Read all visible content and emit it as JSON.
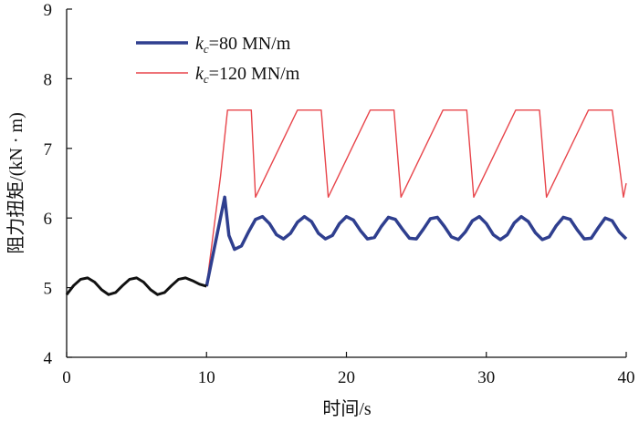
{
  "chart_data": {
    "type": "line",
    "title": "",
    "xlabel": "时间/s",
    "ylabel": "阻力扭矩/(kN · m)",
    "xlim": [
      0,
      40
    ],
    "ylim": [
      4,
      9
    ],
    "xticks": [
      0,
      10,
      20,
      30,
      40
    ],
    "yticks": [
      4,
      5,
      6,
      7,
      8,
      9
    ],
    "grid": false,
    "legend_position": "top-left",
    "series": [
      {
        "name": "common",
        "label": "",
        "color": "#111111",
        "x": [
          0,
          0.5,
          1.0,
          1.5,
          2.0,
          2.5,
          3.0,
          3.5,
          4.0,
          4.5,
          5.0,
          5.5,
          6.0,
          6.5,
          7.0,
          7.5,
          8.0,
          8.5,
          9.0,
          9.5,
          10.0
        ],
        "y": [
          4.9,
          5.03,
          5.12,
          5.14,
          5.08,
          4.97,
          4.9,
          4.93,
          5.03,
          5.12,
          5.14,
          5.08,
          4.97,
          4.9,
          4.93,
          5.03,
          5.12,
          5.14,
          5.1,
          5.05,
          5.02
        ]
      },
      {
        "name": "kc80",
        "label_prefix": "k",
        "label_sub": "c",
        "label_suffix": "=80 MN/m",
        "color": "#2f3f8f",
        "x": [
          10.0,
          11.3,
          11.6,
          12.0,
          12.5,
          13.0,
          13.5,
          14.0,
          14.5,
          15.0,
          15.5,
          16.0,
          16.5,
          17.0,
          17.5,
          18.0,
          18.5,
          19.0,
          19.5,
          20.0,
          20.5,
          21.0,
          21.5,
          22.0,
          22.5,
          23.0,
          23.5,
          24.0,
          24.5,
          25.0,
          25.5,
          26.0,
          26.5,
          27.0,
          27.5,
          28.0,
          28.5,
          29.0,
          29.5,
          30.0,
          30.5,
          31.0,
          31.5,
          32.0,
          32.5,
          33.0,
          33.5,
          34.0,
          34.5,
          35.0,
          35.5,
          36.0,
          36.5,
          37.0,
          37.5,
          38.0,
          38.5,
          39.0,
          39.5,
          40.0
        ],
        "y": [
          5.02,
          6.3,
          5.75,
          5.55,
          5.6,
          5.8,
          5.98,
          6.02,
          5.92,
          5.76,
          5.7,
          5.78,
          5.94,
          6.02,
          5.95,
          5.78,
          5.7,
          5.75,
          5.92,
          6.02,
          5.97,
          5.82,
          5.7,
          5.72,
          5.88,
          6.01,
          5.98,
          5.84,
          5.71,
          5.7,
          5.84,
          5.99,
          6.01,
          5.88,
          5.73,
          5.69,
          5.8,
          5.96,
          6.02,
          5.92,
          5.76,
          5.69,
          5.76,
          5.93,
          6.02,
          5.95,
          5.79,
          5.69,
          5.73,
          5.89,
          6.01,
          5.98,
          5.83,
          5.7,
          5.71,
          5.86,
          6.0,
          5.96,
          5.8,
          5.7
        ]
      },
      {
        "name": "kc120",
        "label_prefix": "k",
        "label_sub": "c",
        "label_suffix": "=120 MN/m",
        "color": "#e8454b",
        "x": [
          10.0,
          11.0,
          11.5,
          13.2,
          13.5,
          16.5,
          18.2,
          18.7,
          21.7,
          23.4,
          23.9,
          26.9,
          28.6,
          29.1,
          32.1,
          33.8,
          34.3,
          37.3,
          39.0,
          39.8,
          40.0
        ],
        "y": [
          5.02,
          6.6,
          7.55,
          7.55,
          6.3,
          7.55,
          7.55,
          6.3,
          7.55,
          7.55,
          6.3,
          7.55,
          7.55,
          6.3,
          7.55,
          7.55,
          6.3,
          7.55,
          7.55,
          6.3,
          6.5
        ]
      }
    ]
  }
}
